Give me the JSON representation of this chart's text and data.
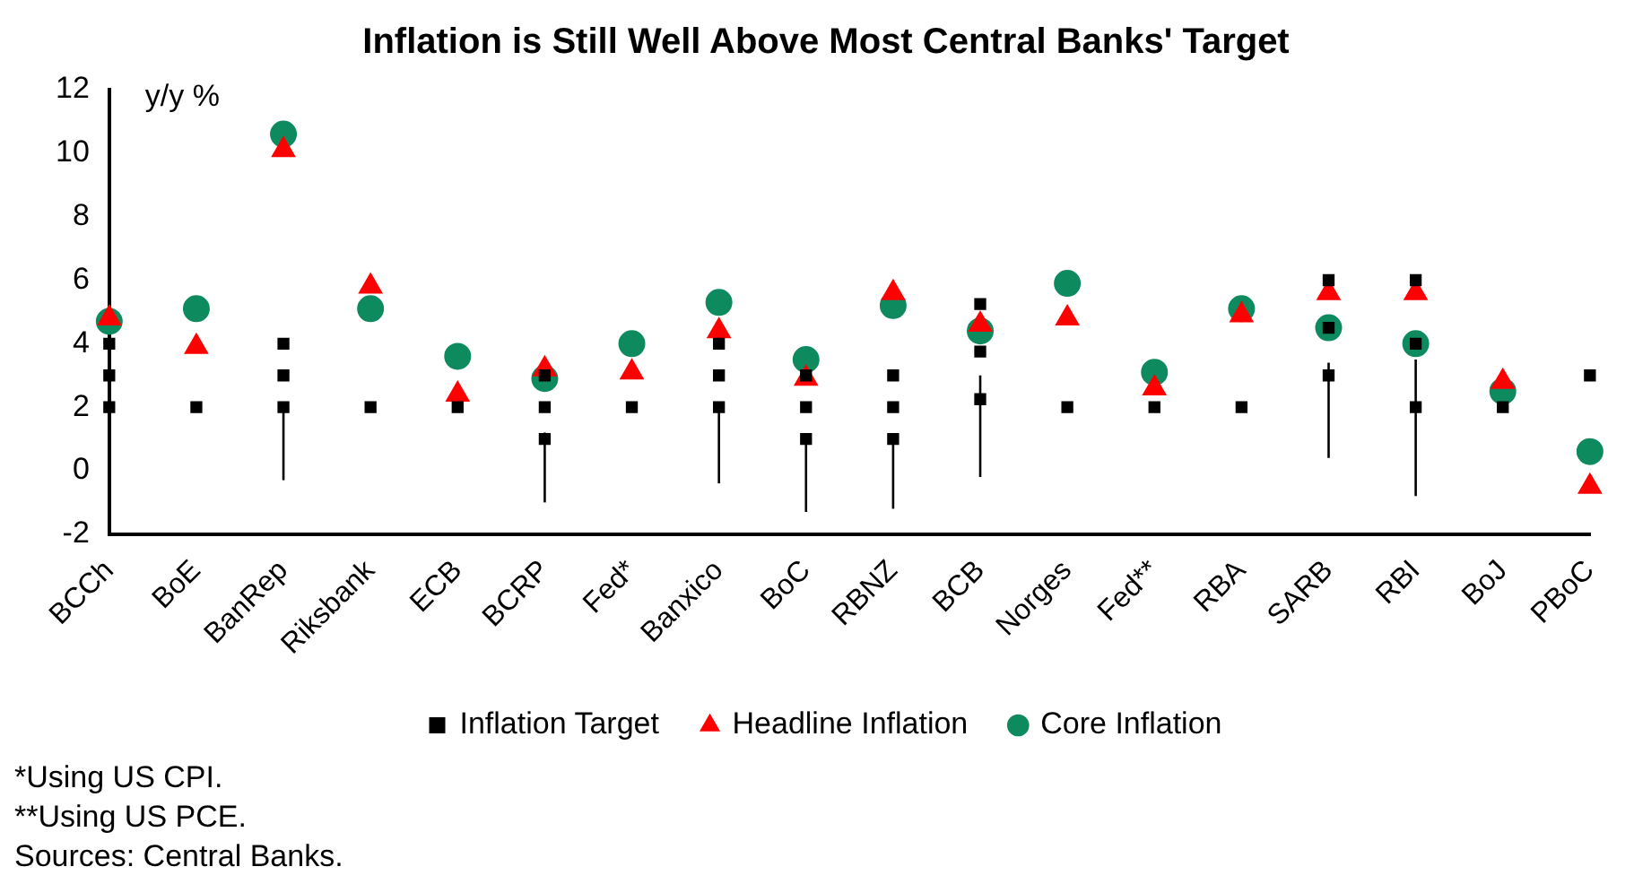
{
  "chart_data": {
    "type": "scatter",
    "title": "Inflation is Still Well Above Most Central Banks' Target",
    "ylabel": "y/y %",
    "categories": [
      "BCCh",
      "BoE",
      "BanRep",
      "Riksbank",
      "ECB",
      "BCRP",
      "Fed*",
      "Banxico",
      "BoC",
      "RBNZ",
      "BCB",
      "Norges",
      "Fed**",
      "RBA",
      "SARB",
      "RBI",
      "BoJ",
      "PBoC"
    ],
    "series": [
      {
        "name": "Headline Inflation",
        "marker": "triangle",
        "color": "#ff0000",
        "values": [
          4.8,
          3.9,
          10.1,
          5.8,
          2.4,
          3.2,
          3.1,
          4.4,
          2.9,
          5.6,
          4.6,
          4.8,
          2.6,
          4.9,
          5.6,
          5.6,
          2.8,
          -0.5
        ]
      },
      {
        "name": "Core Inflation",
        "marker": "circle",
        "color": "#0e8a5f",
        "values": [
          4.7,
          5.1,
          10.6,
          5.1,
          3.6,
          2.9,
          4.0,
          5.3,
          3.5,
          5.2,
          4.4,
          5.9,
          3.1,
          5.1,
          4.5,
          4.0,
          2.5,
          0.6
        ]
      },
      {
        "name": "Inflation Target",
        "marker": "square",
        "color": "#000000",
        "values": [
          2,
          2,
          2,
          2,
          2,
          1,
          2,
          2,
          1,
          1,
          2.25,
          2,
          2,
          2,
          3,
          2,
          2,
          3
        ],
        "errors": [
          [
            -0.2,
            2
          ],
          null,
          [
            -0.3,
            2
          ],
          null,
          null,
          [
            -1.0,
            1.2
          ],
          null,
          [
            -0.4,
            2
          ],
          [
            -1.3,
            1
          ],
          [
            -1.2,
            1
          ],
          [
            -0.2,
            3.0
          ],
          null,
          null,
          null,
          [
            0.4,
            3.4
          ],
          [
            -0.8,
            3.5
          ],
          null,
          null
        ]
      },
      {
        "marker": "square",
        "color": "#000000",
        "values": [
          3,
          null,
          3,
          null,
          null,
          2,
          null,
          3,
          2,
          2,
          3.75,
          null,
          null,
          null,
          4.5,
          4,
          null,
          null
        ]
      },
      {
        "marker": "square",
        "color": "#000000",
        "values": [
          4,
          null,
          4,
          null,
          null,
          3,
          null,
          4,
          3,
          3,
          5.25,
          null,
          null,
          null,
          6,
          6,
          null,
          null
        ]
      }
    ],
    "ylim": [
      -2,
      12
    ],
    "yticks": [
      -2,
      0,
      2,
      4,
      6,
      8,
      10,
      12
    ],
    "grid": false,
    "legend": "bottom",
    "annotations": [
      "*Using US CPI.",
      "**Using US PCE.",
      "Sources: Central Banks."
    ]
  }
}
